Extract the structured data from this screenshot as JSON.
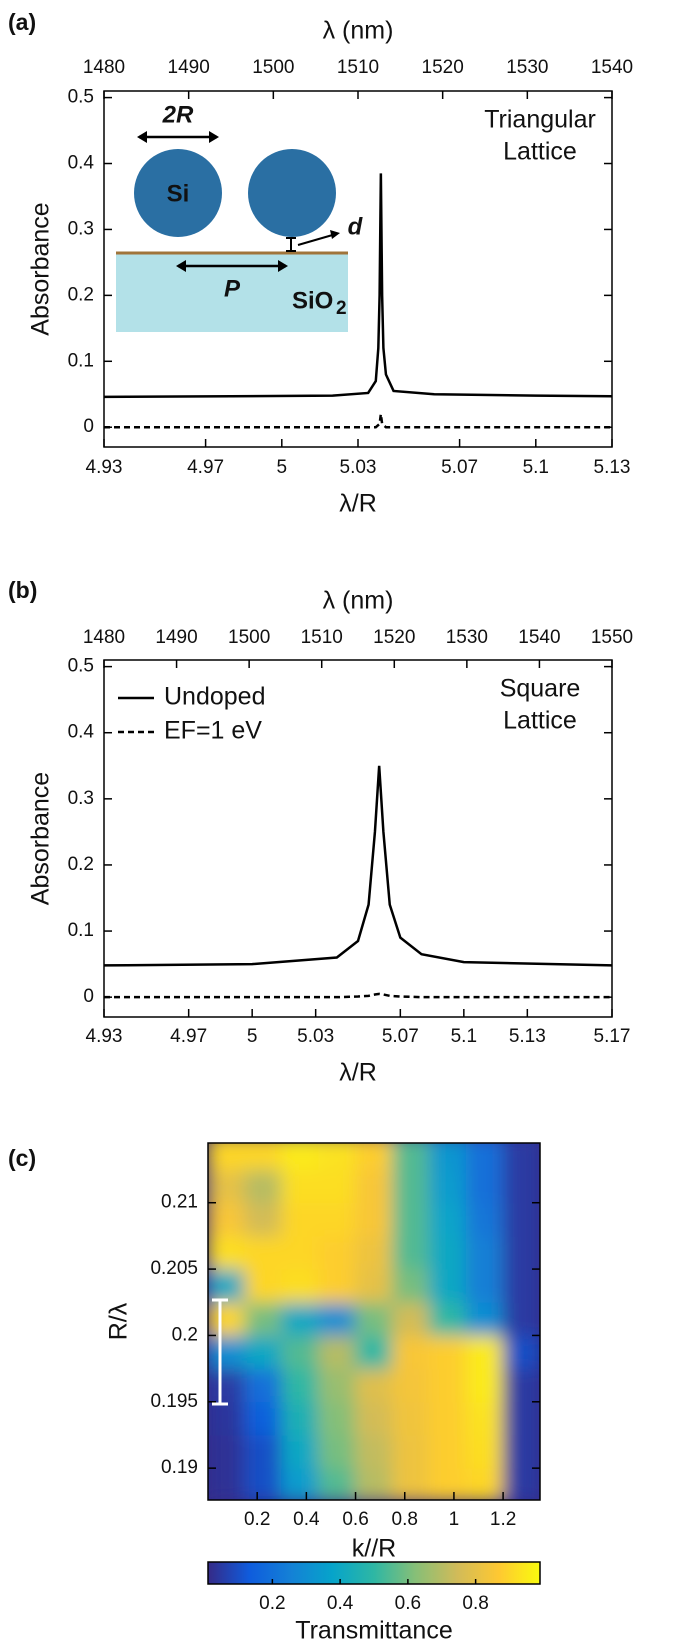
{
  "chart_data": [
    {
      "type": "line",
      "panel_label": "(a)",
      "xlabel": "λ/R",
      "x2label": "λ (nm)",
      "ylabel": "Absorbance",
      "xlim": [
        4.93,
        5.13
      ],
      "xticks": [
        4.93,
        4.97,
        5,
        5.03,
        5.07,
        5.1,
        5.13
      ],
      "x2lim": [
        1480,
        1540
      ],
      "x2ticks": [
        1480,
        1490,
        1500,
        1510,
        1520,
        1530,
        1540
      ],
      "ylim": [
        -0.03,
        0.51
      ],
      "yticks": [
        0,
        0.1,
        0.2,
        0.3,
        0.4,
        0.5
      ],
      "annotation": [
        "Triangular",
        "Lattice"
      ],
      "inset": {
        "size_label": "2R",
        "sphere_label": "Si",
        "gap_label": "d",
        "period_label": "P",
        "substrate_label": "SiO",
        "substrate_sub": "2"
      },
      "series": [
        {
          "color": "#000000",
          "dash": false,
          "x": [
            4.93,
            4.98,
            5.02,
            5.034,
            5.037,
            5.038,
            5.0385,
            5.039,
            5.0395,
            5.04,
            5.041,
            5.044,
            5.06,
            5.1,
            5.13
          ],
          "values": [
            0.046,
            0.047,
            0.048,
            0.052,
            0.07,
            0.12,
            0.2,
            0.385,
            0.2,
            0.12,
            0.08,
            0.055,
            0.05,
            0.048,
            0.047
          ]
        },
        {
          "color": "#000000",
          "dash": true,
          "x": [
            4.93,
            5.0,
            5.037,
            5.0385,
            5.039,
            5.0395,
            5.041,
            5.13
          ],
          "values": [
            0,
            0,
            0,
            0.005,
            0.02,
            0.005,
            0,
            0
          ]
        }
      ]
    },
    {
      "type": "line",
      "panel_label": "(b)",
      "xlabel": "λ/R",
      "x2label": "λ (nm)",
      "ylabel": "Absorbance",
      "xlim": [
        4.93,
        5.17
      ],
      "xticks": [
        4.93,
        4.97,
        5,
        5.03,
        5.07,
        5.1,
        5.13,
        5.17
      ],
      "x2lim": [
        1480,
        1550
      ],
      "x2ticks": [
        1480,
        1490,
        1500,
        1510,
        1520,
        1530,
        1540,
        1550
      ],
      "ylim": [
        -0.03,
        0.51
      ],
      "yticks": [
        0,
        0.1,
        0.2,
        0.3,
        0.4,
        0.5
      ],
      "annotation": [
        "Square",
        "Lattice"
      ],
      "legend": "upper left",
      "series": [
        {
          "name": "Undoped",
          "color": "#000000",
          "dash": false,
          "x": [
            4.93,
            5.0,
            5.04,
            5.05,
            5.055,
            5.058,
            5.06,
            5.062,
            5.065,
            5.07,
            5.08,
            5.1,
            5.17
          ],
          "values": [
            0.048,
            0.05,
            0.06,
            0.085,
            0.14,
            0.25,
            0.35,
            0.25,
            0.14,
            0.09,
            0.065,
            0.053,
            0.048
          ]
        },
        {
          "name": "EF=1 eV",
          "color": "#000000",
          "dash": true,
          "x": [
            4.93,
            5.0,
            5.04,
            5.05,
            5.055,
            5.058,
            5.06,
            5.062,
            5.065,
            5.07,
            5.08,
            5.1,
            5.17
          ],
          "values": [
            0,
            0,
            0,
            0.001,
            0.002,
            0.004,
            0.005,
            0.004,
            0.002,
            0.001,
            0,
            0,
            0
          ]
        }
      ]
    },
    {
      "type": "heatmap",
      "panel_label": "(c)",
      "xlabel": "k//R",
      "ylabel": "R/λ",
      "xlim": [
        0,
        1.35
      ],
      "xticks": [
        0.2,
        0.4,
        0.6,
        0.8,
        1,
        1.2
      ],
      "ylim": [
        0.1876,
        0.2145
      ],
      "yticks": [
        0.19,
        0.195,
        0.2,
        0.205,
        0.21
      ],
      "x": [
        0.075,
        0.225,
        0.375,
        0.525,
        0.675,
        0.825,
        0.975,
        1.125,
        1.275
      ],
      "y": [
        0.18875,
        0.19125,
        0.19375,
        0.19625,
        0.19875,
        0.20125,
        0.20375,
        0.20625,
        0.20875,
        0.21125,
        0.21375
      ],
      "z": [
        [
          0.03,
          0.1,
          0.35,
          0.55,
          0.7,
          0.82,
          0.88,
          0.9,
          0.05
        ],
        [
          0.03,
          0.1,
          0.4,
          0.6,
          0.72,
          0.82,
          0.88,
          0.92,
          0.05
        ],
        [
          0.04,
          0.15,
          0.45,
          0.62,
          0.75,
          0.83,
          0.88,
          0.93,
          0.05
        ],
        [
          0.05,
          0.2,
          0.5,
          0.65,
          0.78,
          0.84,
          0.88,
          0.95,
          0.05
        ],
        [
          0.3,
          0.4,
          0.55,
          0.7,
          0.5,
          0.85,
          0.88,
          0.95,
          0.1
        ],
        [
          0.9,
          0.6,
          0.4,
          0.3,
          0.6,
          0.75,
          0.5,
          0.3,
          0.05
        ],
        [
          0.4,
          0.9,
          0.92,
          0.88,
          0.8,
          0.6,
          0.4,
          0.25,
          0.05
        ],
        [
          0.92,
          0.9,
          0.9,
          0.88,
          0.82,
          0.55,
          0.4,
          0.25,
          0.05
        ],
        [
          0.85,
          0.75,
          0.9,
          0.9,
          0.85,
          0.55,
          0.38,
          0.22,
          0.05
        ],
        [
          0.8,
          0.7,
          0.92,
          0.92,
          0.85,
          0.55,
          0.35,
          0.2,
          0.05
        ],
        [
          0.9,
          0.9,
          0.95,
          0.93,
          0.88,
          0.55,
          0.33,
          0.2,
          0.05
        ]
      ],
      "clim": [
        0.01,
        0.99
      ],
      "colorscale": [
        "#352a87",
        "#0f5cdd",
        "#1481d6",
        "#06a4ca",
        "#2eb7a4",
        "#87bf77",
        "#d1bb59",
        "#fec832",
        "#f9fb0e"
      ],
      "colorbar": {
        "label": "Transmittance",
        "ticks": [
          0.2,
          0.4,
          0.6,
          0.8
        ]
      }
    }
  ]
}
